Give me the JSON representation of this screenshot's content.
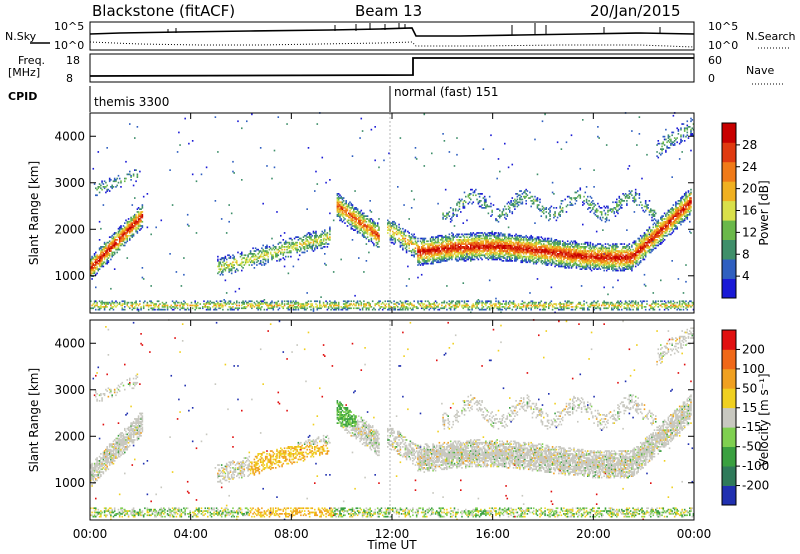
{
  "header": {
    "station": "Blackstone (fitACF)",
    "beam": "Beam 13",
    "date": "20/Jan/2015"
  },
  "panels": {
    "nsky": {
      "left_label": "N.Sky",
      "right_label": "N.Search",
      "left_top": "10^5",
      "left_bottom": "10^0",
      "right_top": "10^5",
      "right_bottom": "10^0"
    },
    "freq": {
      "left_label_1": "Freq.",
      "left_label_2": "[MHz]",
      "right_label": "Nave",
      "left_top": "18",
      "left_bottom": "8",
      "right_top": "60",
      "right_bottom": "0"
    },
    "cpid": {
      "label": "CPID",
      "segment_1": "themis 3300",
      "segment_2": "normal (fast) 151"
    }
  },
  "chart_data": [
    {
      "type": "heatmap",
      "name": "power-panel",
      "ylabel": "Slant Range [km]",
      "xlabel": "",
      "x_ticks": [
        "00:00",
        "04:00",
        "08:00",
        "12:00",
        "16:00",
        "20:00",
        "00:00"
      ],
      "y_ticks": [
        "1000",
        "2000",
        "3000",
        "4000"
      ],
      "ylim": [
        200,
        4500
      ],
      "xlim_hours": [
        0,
        24
      ],
      "colorbar": {
        "title": "Power [dB]",
        "ticks": [
          "4",
          "8",
          "12",
          "16",
          "20",
          "24",
          "28"
        ],
        "colors": [
          "#1a1ad6",
          "#2f5fc0",
          "#3f8f6a",
          "#6ab84a",
          "#d9e04a",
          "#f0b020",
          "#f07a18",
          "#e03a10",
          "#c80000"
        ]
      }
    },
    {
      "type": "heatmap",
      "name": "velocity-panel",
      "ylabel": "Slant Range [km]",
      "xlabel": "Time UT",
      "x_ticks": [
        "00:00",
        "04:00",
        "08:00",
        "12:00",
        "16:00",
        "20:00",
        "00:00"
      ],
      "y_ticks": [
        "1000",
        "2000",
        "3000",
        "4000"
      ],
      "ylim": [
        200,
        4500
      ],
      "xlim_hours": [
        0,
        24
      ],
      "colorbar": {
        "title": "Velocity [m s⁻¹]",
        "ticks": [
          "200",
          "100",
          "50",
          "15",
          "-15",
          "-50",
          "-100",
          "-200"
        ],
        "colors": [
          "#2030b0",
          "#2f7a5a",
          "#3aa040",
          "#7fd050",
          "#c8c8c0",
          "#f0d020",
          "#f0a020",
          "#f06818",
          "#e01010"
        ]
      }
    }
  ]
}
